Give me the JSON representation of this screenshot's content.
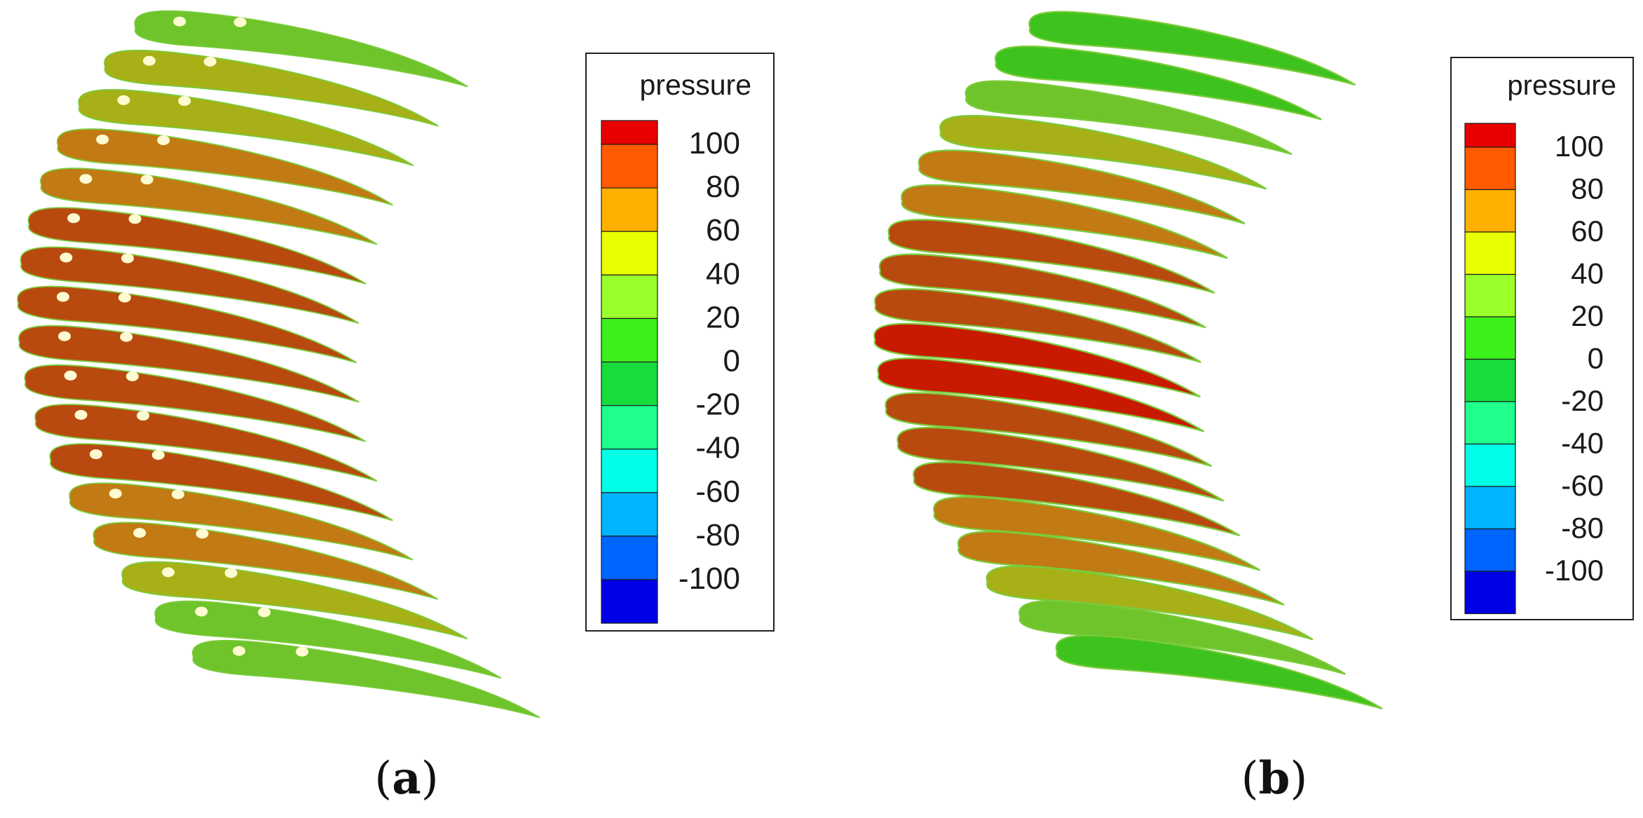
{
  "figure": {
    "panels": [
      {
        "id": "a",
        "caption_open": "(",
        "caption_letter": "a",
        "caption_close": ")",
        "blade_pressures": [
          40,
          50,
          60,
          70,
          80,
          90,
          90,
          90,
          90,
          90,
          90,
          90,
          80,
          70,
          60,
          40,
          30
        ],
        "cooling_holes": true
      },
      {
        "id": "b",
        "caption_open": "(",
        "caption_letter": "b",
        "caption_close": ")",
        "blade_pressures": [
          15,
          20,
          35,
          45,
          70,
          75,
          90,
          90,
          95,
          110,
          110,
          95,
          90,
          90,
          75,
          70,
          50,
          30,
          20
        ],
        "cooling_holes": false
      }
    ],
    "legend": {
      "title": "pressure",
      "levels": [
        100,
        80,
        60,
        40,
        20,
        0,
        -20,
        -40,
        -60,
        -80,
        -100
      ],
      "level_labels": [
        "100",
        "80",
        "60",
        "40",
        "20",
        "0",
        "-20",
        "-40",
        "-60",
        "-80",
        "-100"
      ],
      "band_colors": [
        "#e80000",
        "#ff5a00",
        "#ffb000",
        "#e8ff00",
        "#9bff2a",
        "#3cf01a",
        "#18dc3c",
        "#1eff8c",
        "#00ffe6",
        "#00b4ff",
        "#0064ff",
        "#0000e6"
      ]
    },
    "colors": {
      "blade_outline": "#7acb3a",
      "cooling_hole": "#fffbd0",
      "legend_border": "#222222"
    }
  }
}
